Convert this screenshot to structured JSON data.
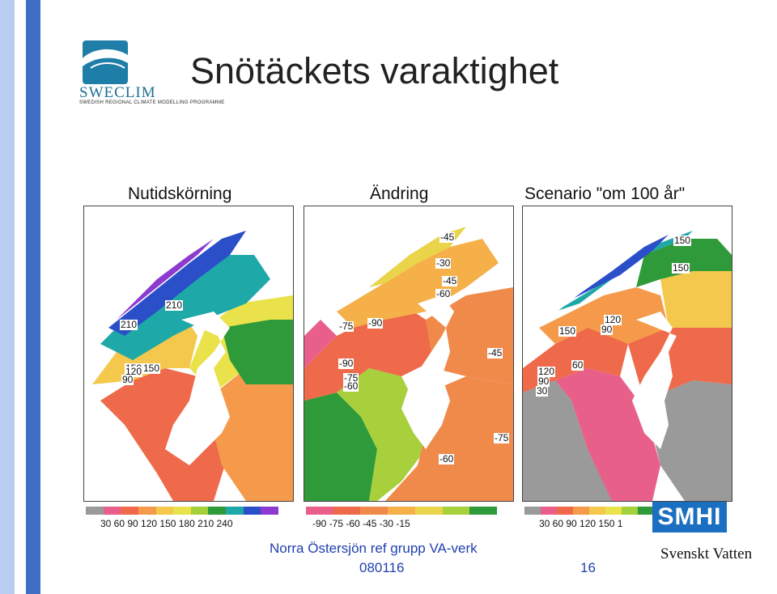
{
  "logo": {
    "name": "SWECLIM",
    "subtitle": "SWEDISH REGIONAL CLIMATE MODELLING PROGRAMME"
  },
  "title": "Snötäckets varaktighet",
  "panels": [
    {
      "title": "Nutidskörning",
      "labels": [
        "210",
        "210",
        "150",
        "150",
        "120",
        "90"
      ],
      "legend_colors": [
        "#9a9a9a",
        "#e8608a",
        "#ee6a4a",
        "#f59a4a",
        "#f4c84c",
        "#e9e24a",
        "#a4d03c",
        "#2f9a3a",
        "#1fa8a8",
        "#2a4fc8",
        "#8c3ad0"
      ],
      "legend_ticks": "30  60  90 120 150 180 210 240"
    },
    {
      "title": "Ändring",
      "labels": [
        "-45",
        "-30",
        "-45",
        "-60",
        "-75",
        "-90",
        "-90",
        "-75",
        "-60",
        "-45",
        "-75",
        "-60"
      ],
      "legend_colors": [
        "#e8608a",
        "#ee6a4a",
        "#f08a4a",
        "#f5b04a",
        "#e9d44a",
        "#a8cf3c",
        "#2f9a3a"
      ],
      "legend_ticks": "-90  -75  -60  -45  -30  -15"
    },
    {
      "title": "Scenario \"om 100 år\"",
      "labels": [
        "150",
        "150",
        "120",
        "150",
        "90",
        "60",
        "120",
        "90",
        "30"
      ],
      "legend_colors": [
        "#9a9a9a",
        "#e8608a",
        "#ee6a4a",
        "#f59a4a",
        "#f4c84c",
        "#e9e24a",
        "#a4d03c",
        "#2f9a3a"
      ],
      "legend_ticks": "30  60  90 120 150 1"
    }
  ],
  "smhi": "SMHI",
  "footer": {
    "line1": "Norra Östersjön ref grupp VA-verk",
    "line2": "080116",
    "page": "16"
  },
  "svensktvatten": "Svenskt Vatten"
}
